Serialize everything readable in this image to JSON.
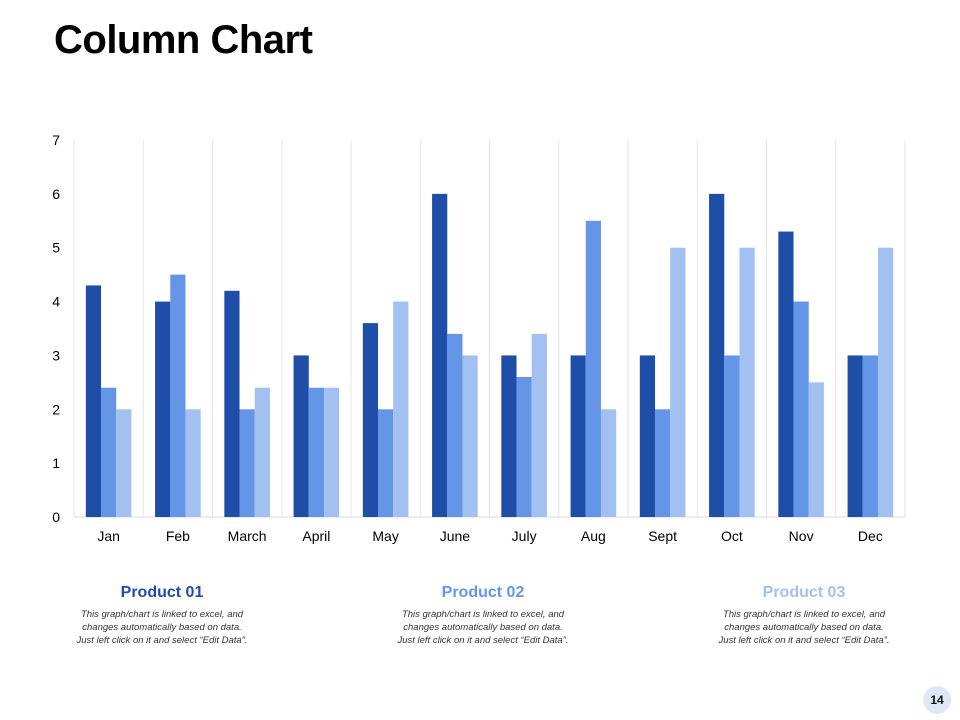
{
  "slide": {
    "title": "Column Chart",
    "page_number": "14"
  },
  "colors": {
    "product_01": "#1f4ea8",
    "product_02": "#6495e6",
    "product_03": "#a2c0f0",
    "grid": "#e5e5e5",
    "badge_bg": "#dde8f6"
  },
  "legend": [
    {
      "title": "Product 01",
      "color": "#1f4ea8",
      "desc_lines": [
        "This graph/chart is linked to excel, and",
        "changes automatically based on data.",
        "Just left click on it and select “Edit Data”."
      ]
    },
    {
      "title": "Product 02",
      "color": "#6495e6",
      "desc_lines": [
        "This graph/chart is linked to excel, and",
        "changes automatically based on data.",
        "Just left click on it and select “Edit Data”."
      ]
    },
    {
      "title": "Product 03",
      "color": "#a2c0f0",
      "desc_lines": [
        "This graph/chart is linked to excel, and",
        "changes automatically based on data.",
        "Just left click on it and select “Edit Data”."
      ]
    }
  ],
  "chart_data": {
    "type": "bar",
    "title": "",
    "xlabel": "",
    "ylabel": "",
    "categories": [
      "Jan",
      "Feb",
      "March",
      "April",
      "May",
      "June",
      "July",
      "Aug",
      "Sept",
      "Oct",
      "Nov",
      "Dec"
    ],
    "ylim": [
      0,
      7
    ],
    "yticks": [
      0,
      1,
      2,
      3,
      4,
      5,
      6,
      7
    ],
    "grid": "vertical",
    "series": [
      {
        "name": "Product 01",
        "color": "#1f4ea8",
        "values": [
          4.3,
          4,
          4.2,
          3,
          3.6,
          6,
          3,
          3,
          3,
          6,
          5.3,
          3
        ]
      },
      {
        "name": "Product 02",
        "color": "#6495e6",
        "values": [
          2.4,
          4.5,
          2,
          2.4,
          2,
          3.4,
          2.6,
          5.5,
          2,
          3,
          4,
          3
        ]
      },
      {
        "name": "Product 03",
        "color": "#a2c0f0",
        "values": [
          2,
          2,
          2.4,
          2.4,
          4,
          3,
          3.4,
          2,
          5,
          5,
          2.5,
          5
        ]
      }
    ]
  }
}
